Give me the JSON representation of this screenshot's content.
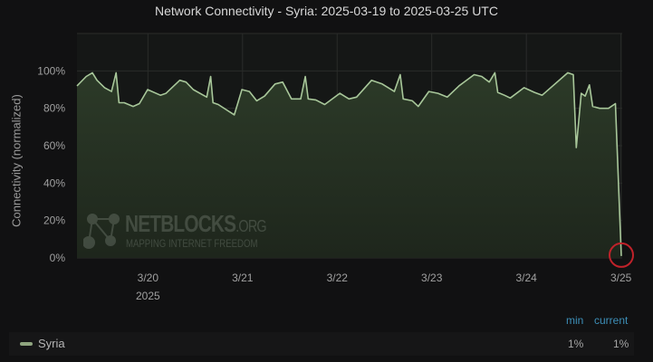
{
  "chart_data": {
    "type": "area",
    "title": "Network Connectivity - Syria: 2025-03-19 to 2025-03-25 UTC",
    "ylabel": "Connectivity (normalized)",
    "xlabel": "",
    "ylim": [
      0,
      120
    ],
    "yticks": [
      "0%",
      "20%",
      "40%",
      "60%",
      "80%",
      "100%"
    ],
    "ytick_values": [
      0,
      20,
      40,
      60,
      80,
      100
    ],
    "xticks": [
      {
        "date": "2025-03-20T00:00",
        "label": "3/20",
        "sublabel": "2025"
      },
      {
        "date": "2025-03-21T00:00",
        "label": "3/21"
      },
      {
        "date": "2025-03-22T00:00",
        "label": "3/22"
      },
      {
        "date": "2025-03-23T00:00",
        "label": "3/23"
      },
      {
        "date": "2025-03-24T00:00",
        "label": "3/24"
      },
      {
        "date": "2025-03-25T00:00",
        "label": "3/25"
      }
    ],
    "grid": true,
    "line_color": "#a8c79a",
    "fill_color": "#2c3a28",
    "highlight_color": "#c0222a",
    "series": [
      {
        "name": "Syria",
        "x": [
          "2025-03-19T06:00",
          "2025-03-19T08:20",
          "2025-03-19T09:55",
          "2025-03-19T11:05",
          "2025-03-19T13:00",
          "2025-03-19T14:45",
          "2025-03-19T15:55",
          "2025-03-19T16:40",
          "2025-03-19T18:00",
          "2025-03-19T20:15",
          "2025-03-19T21:50",
          "2025-03-19T23:55",
          "2025-03-20T03:10",
          "2025-03-20T04:35",
          "2025-03-20T08:05",
          "2025-03-20T09:40",
          "2025-03-20T11:30",
          "2025-03-20T14:55",
          "2025-03-20T15:55",
          "2025-03-20T16:30",
          "2025-03-20T17:50",
          "2025-03-20T21:55",
          "2025-03-20T23:50",
          "2025-03-21T01:45",
          "2025-03-21T03:35",
          "2025-03-21T05:35",
          "2025-03-21T08:15",
          "2025-03-21T10:10",
          "2025-03-21T12:25",
          "2025-03-21T14:45",
          "2025-03-21T15:55",
          "2025-03-21T16:40",
          "2025-03-21T18:35",
          "2025-03-21T20:50",
          "2025-03-22T00:40",
          "2025-03-22T03:00",
          "2025-03-22T04:55",
          "2025-03-22T08:45",
          "2025-03-22T11:25",
          "2025-03-22T14:30",
          "2025-03-22T16:00",
          "2025-03-22T16:45",
          "2025-03-22T19:05",
          "2025-03-22T20:35",
          "2025-03-22T23:15",
          "2025-03-23T01:35",
          "2025-03-23T03:55",
          "2025-03-23T06:55",
          "2025-03-23T10:45",
          "2025-03-23T12:40",
          "2025-03-23T14:35",
          "2025-03-23T16:00",
          "2025-03-23T16:45",
          "2025-03-23T18:25",
          "2025-03-23T19:55",
          "2025-03-23T23:25",
          "2025-03-24T02:05",
          "2025-03-24T04:00",
          "2025-03-24T10:30",
          "2025-03-24T11:55",
          "2025-03-24T12:40",
          "2025-03-24T13:55",
          "2025-03-24T14:55",
          "2025-03-24T16:00",
          "2025-03-24T16:50",
          "2025-03-24T18:35",
          "2025-03-24T20:50",
          "2025-03-24T22:35",
          "2025-03-25T00:05"
        ],
        "values": [
          92,
          97,
          99,
          95,
          91,
          89,
          99,
          83,
          83,
          81,
          82.5,
          90,
          87,
          88,
          95,
          94,
          90,
          86,
          97,
          83,
          82,
          76.5,
          90,
          89,
          84,
          86.5,
          93,
          94,
          85,
          85,
          97,
          85,
          84.5,
          82,
          88,
          85,
          86,
          95,
          93,
          89,
          98,
          85,
          84,
          81,
          89,
          88,
          86,
          92,
          98,
          97,
          94,
          99,
          88.5,
          87,
          85.5,
          91,
          88.5,
          87,
          99,
          98,
          59,
          88,
          86.5,
          92.5,
          81,
          80,
          80,
          82.5,
          1
        ]
      }
    ]
  },
  "watermark": {
    "main": "NETBLOCKS",
    "suffix": ".ORG",
    "sub": "MAPPING INTERNET FREEDOM"
  },
  "legend": {
    "columns": [
      "min",
      "current"
    ],
    "rows": [
      {
        "name": "Syria",
        "min": "1%",
        "current": "1%"
      }
    ]
  }
}
